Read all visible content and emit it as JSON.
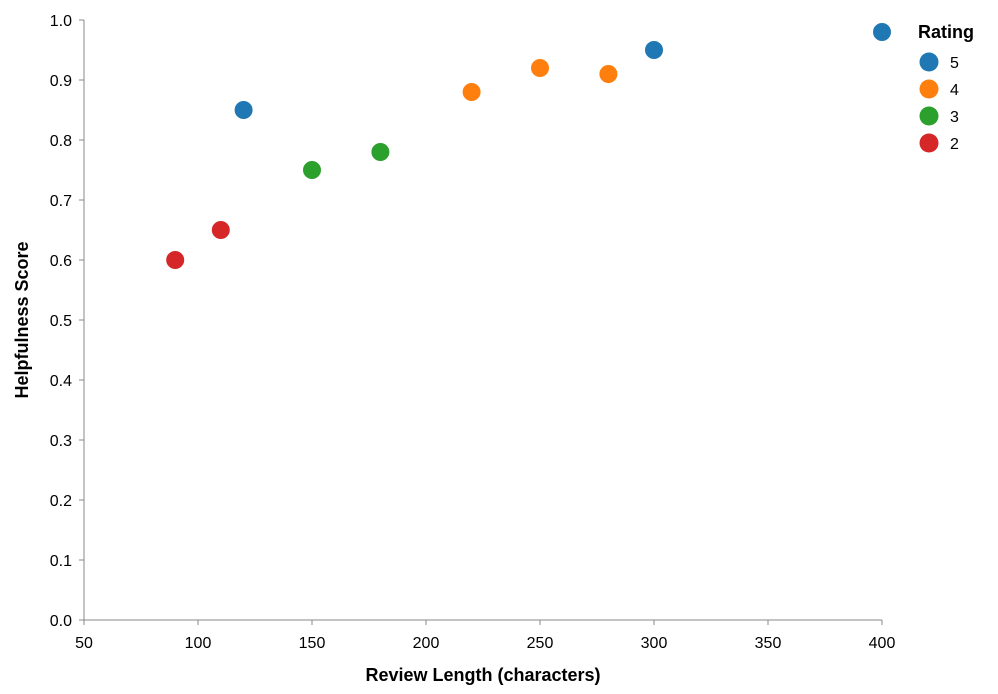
{
  "chart_data": {
    "type": "scatter",
    "xlabel": "Review Length (characters)",
    "ylabel": "Helpfulness Score",
    "xlim": [
      50,
      400
    ],
    "ylim": [
      0.0,
      1.0
    ],
    "x_ticks": [
      "50",
      "100",
      "150",
      "200",
      "250",
      "300",
      "350",
      "400"
    ],
    "y_ticks": [
      "0.0",
      "0.1",
      "0.2",
      "0.3",
      "0.4",
      "0.5",
      "0.6",
      "0.7",
      "0.8",
      "0.9",
      "1.0"
    ],
    "grid": false,
    "legend": {
      "title": "Rating",
      "position": "top-right",
      "entries": [
        {
          "label": "5",
          "color": "#1f77b4"
        },
        {
          "label": "4",
          "color": "#ff7f0e"
        },
        {
          "label": "3",
          "color": "#2ca02c"
        },
        {
          "label": "2",
          "color": "#d62728"
        }
      ]
    },
    "series": [
      {
        "name": "5",
        "color": "#1f77b4",
        "points": [
          {
            "x": 120,
            "y": 0.85
          },
          {
            "x": 300,
            "y": 0.95
          },
          {
            "x": 400,
            "y": 0.98
          }
        ]
      },
      {
        "name": "4",
        "color": "#ff7f0e",
        "points": [
          {
            "x": 220,
            "y": 0.88
          },
          {
            "x": 250,
            "y": 0.92
          },
          {
            "x": 280,
            "y": 0.91
          }
        ]
      },
      {
        "name": "3",
        "color": "#2ca02c",
        "points": [
          {
            "x": 150,
            "y": 0.75
          },
          {
            "x": 180,
            "y": 0.78
          }
        ]
      },
      {
        "name": "2",
        "color": "#d62728",
        "points": [
          {
            "x": 90,
            "y": 0.6
          },
          {
            "x": 110,
            "y": 0.65
          }
        ]
      }
    ]
  }
}
